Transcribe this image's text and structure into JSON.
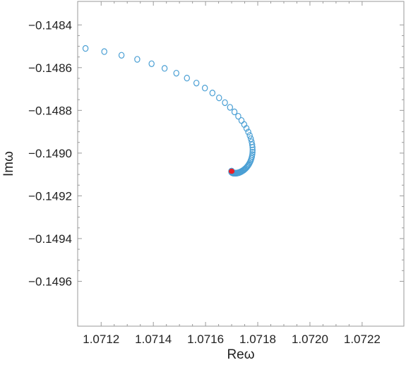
{
  "chart_data": {
    "type": "scatter",
    "title": "",
    "xlabel": "Reω",
    "ylabel": "Imω",
    "xlim": [
      1.07111,
      1.07236
    ],
    "ylim": [
      -0.14981,
      -0.14829
    ],
    "x_ticks": [
      1.0712,
      1.0714,
      1.0716,
      1.0718,
      1.072,
      1.0722
    ],
    "x_tick_labels": [
      "1.0712",
      "1.0714",
      "1.0716",
      "1.0718",
      "1.0720",
      "1.0722"
    ],
    "y_ticks": [
      -0.1484,
      -0.1486,
      -0.1488,
      -0.149,
      -0.1492,
      -0.1494,
      -0.1496
    ],
    "y_tick_labels": [
      "−0.1484",
      "−0.1486",
      "−0.1488",
      "−0.1490",
      "−0.1492",
      "−0.1494",
      "−0.1496"
    ],
    "grid": false,
    "legend": false,
    "spiral": {
      "center": [
        1.0717,
        -0.149085
      ],
      "start": [
        1.07114,
        -0.14851
      ],
      "total_angle_degrees": 1320,
      "num_points": 420,
      "radius_decay": 1.33,
      "x_stretch": 1.08
    },
    "series": [
      {
        "color": "#4a9fd4",
        "marker": "open-circle"
      },
      {
        "points": [
          [
            1.0717,
            -0.149085
          ]
        ],
        "color": "#e8202a",
        "marker": "filled-circle"
      }
    ]
  }
}
